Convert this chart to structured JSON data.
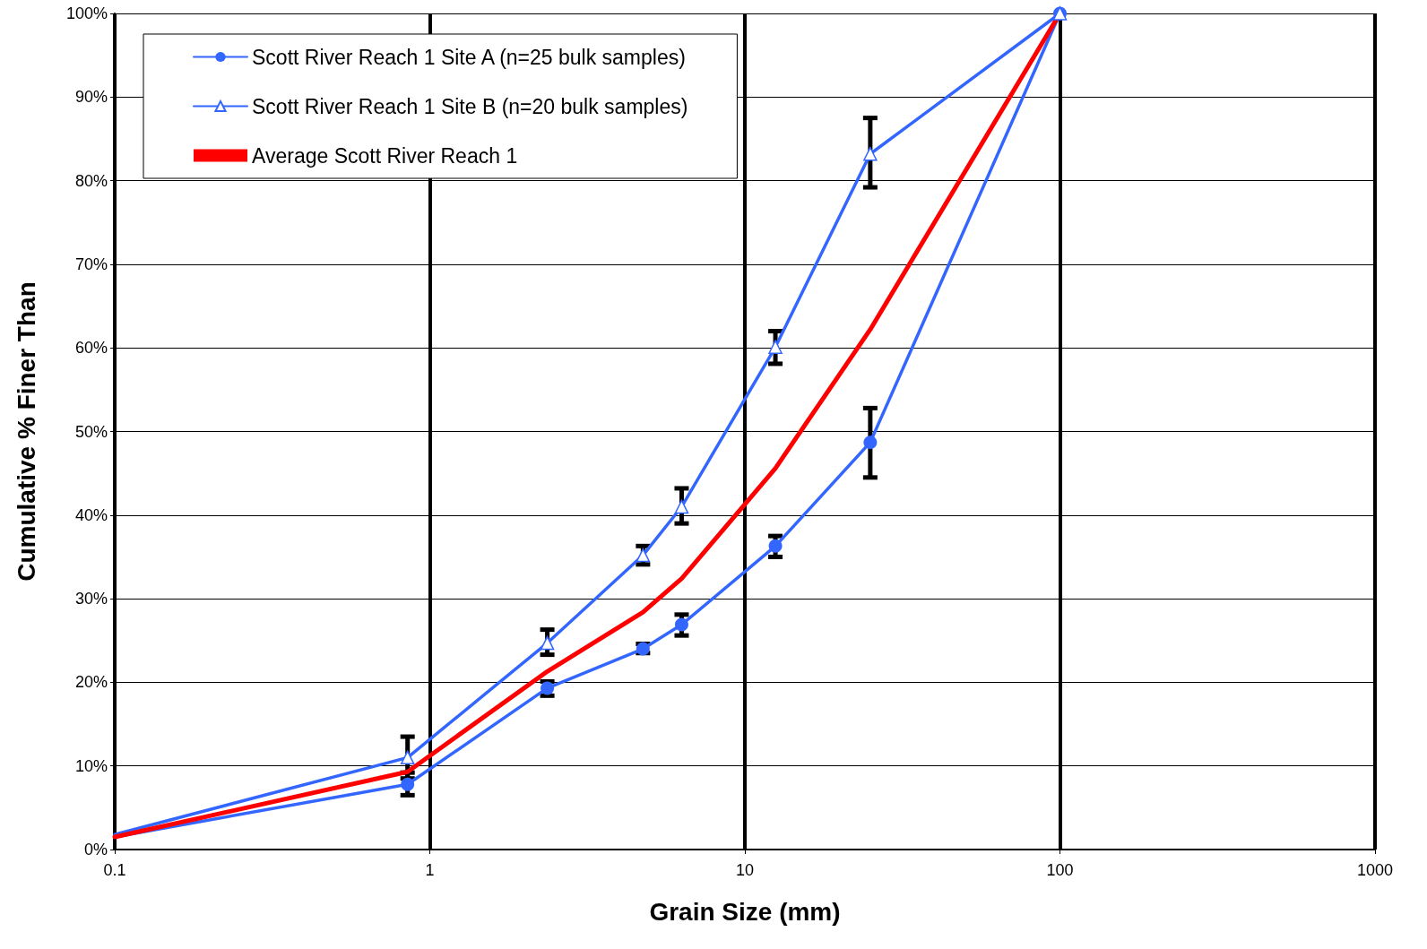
{
  "chart_data": {
    "type": "line",
    "xlabel": "Grain Size (mm)",
    "ylabel": "Cumulative % Finer Than",
    "x": [
      0.1,
      0.85,
      2.36,
      4.75,
      6.3,
      12.5,
      25,
      100
    ],
    "series": [
      {
        "name": "Scott River Reach 1 Site A (n=25 bulk samples)",
        "color": "#3366ff",
        "marker": "circle",
        "values": [
          1.5,
          7.8,
          19.3,
          24.0,
          26.9,
          36.3,
          48.7,
          100
        ],
        "errors": [
          null,
          [
            6.5,
            9.2
          ],
          [
            18.4,
            20.1
          ],
          [
            23.5,
            24.6
          ],
          [
            25.6,
            28.1
          ],
          [
            35.0,
            37.5
          ],
          [
            44.5,
            52.8
          ],
          null
        ]
      },
      {
        "name": "Scott River Reach 1 Site B (n=20 bulk samples)",
        "color": "#3366ff",
        "marker": "triangle",
        "values": [
          1.8,
          11.0,
          24.7,
          35.2,
          41.0,
          60.1,
          83.2,
          100
        ],
        "errors": [
          null,
          [
            8.5,
            13.5
          ],
          [
            23.3,
            26.3
          ],
          [
            34.1,
            36.3
          ],
          [
            39.0,
            43.2
          ],
          [
            58.1,
            62.0
          ],
          [
            79.2,
            87.5
          ],
          null
        ]
      },
      {
        "name": "Average Scott River Reach 1",
        "color": "#ff0000",
        "marker": "none",
        "values": [
          1.5,
          9.3,
          21.3,
          28.4,
          32.4,
          45.6,
          62.2,
          100
        ]
      }
    ],
    "log": "x",
    "xlim": [
      0.1,
      1000
    ],
    "xticks": [
      0.1,
      1,
      10,
      100,
      1000
    ],
    "ylim": [
      0,
      100
    ],
    "yticks": [
      {
        "value": 0,
        "label": "0%"
      },
      {
        "value": 10,
        "label": "10%"
      },
      {
        "value": 20,
        "label": "20%"
      },
      {
        "value": 30,
        "label": "30%"
      },
      {
        "value": 40,
        "label": "40%"
      },
      {
        "value": 50,
        "label": "50%"
      },
      {
        "value": 60,
        "label": "60%"
      },
      {
        "value": 70,
        "label": "70%"
      },
      {
        "value": 80,
        "label": "80%"
      },
      {
        "value": 90,
        "label": "90%"
      },
      {
        "value": 100,
        "label": "100%"
      }
    ],
    "grid": true,
    "legend": "top left",
    "line_style": "solid"
  }
}
